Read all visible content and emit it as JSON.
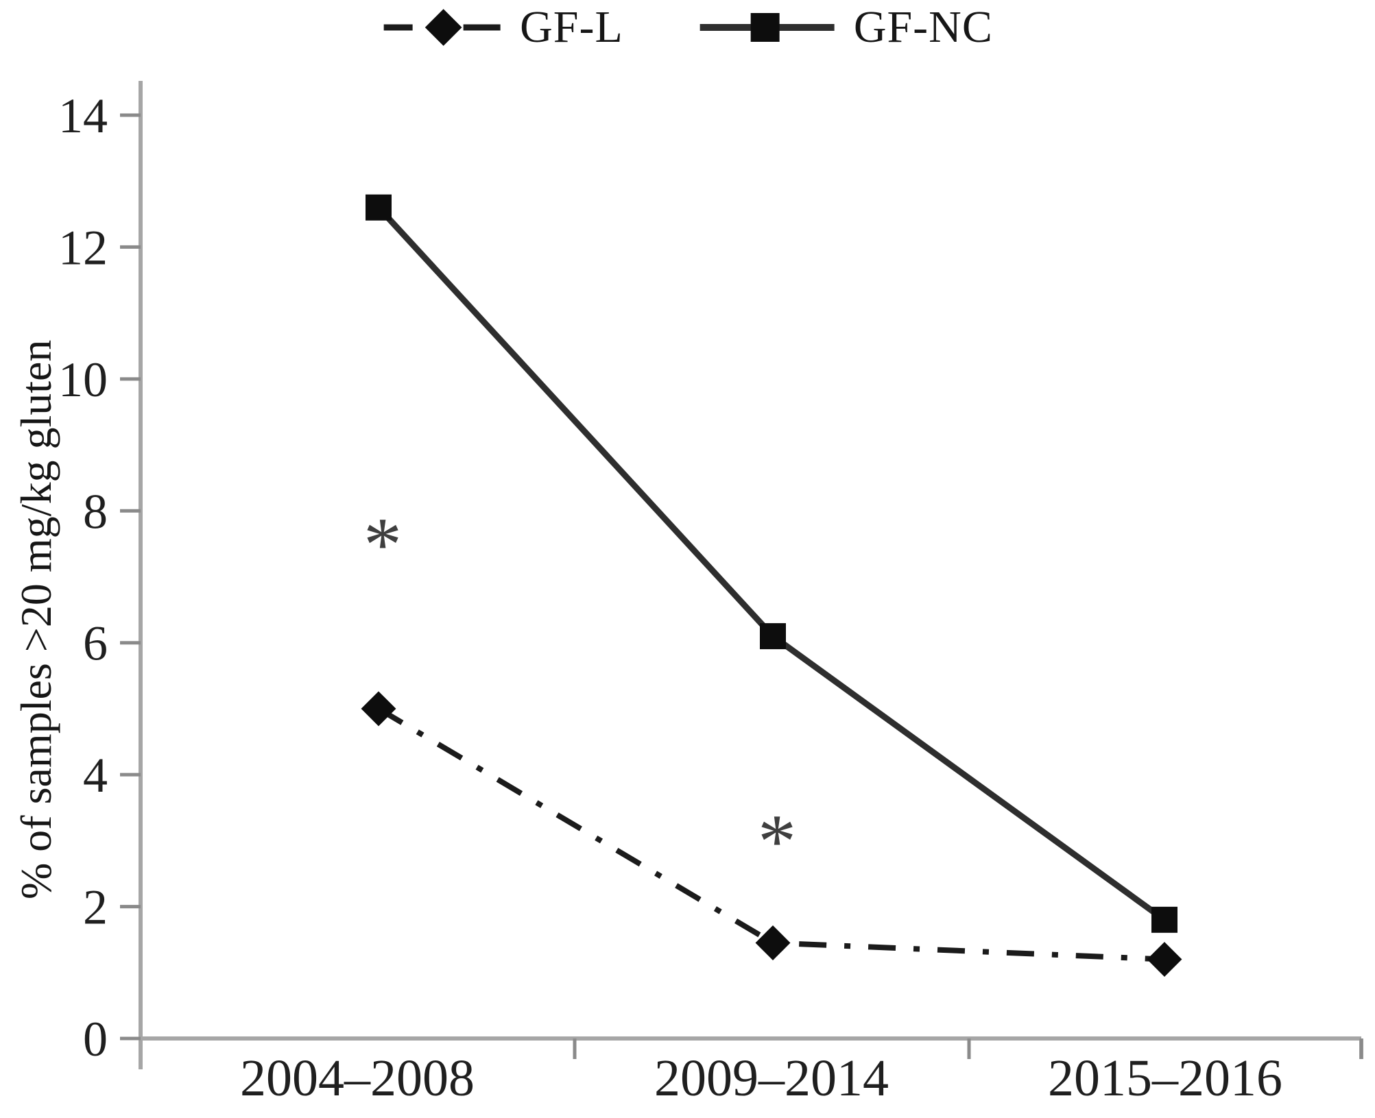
{
  "figure": {
    "background": "#ffffff",
    "text_color": "#1f1f1f",
    "axis_color": "#a6a6a6",
    "tick_color": "#8a8a8a",
    "annotation_color": "#3f3f3f"
  },
  "legend": {
    "items": [
      {
        "label": "GF-L",
        "marker": "diamond",
        "line_style": "dash-dot"
      },
      {
        "label": "GF-NC",
        "marker": "square",
        "line_style": "solid"
      }
    ]
  },
  "chart_data": {
    "type": "line",
    "title": "",
    "categories": [
      "2004–2008",
      "2009–2014",
      "2015–2016"
    ],
    "series": [
      {
        "name": "GF-L",
        "values": [
          5.0,
          1.45,
          1.2
        ],
        "marker": "diamond",
        "line_style": "dash-dot",
        "color": "#1b1b1b"
      },
      {
        "name": "GF-NC",
        "values": [
          12.6,
          6.1,
          1.8
        ],
        "marker": "square",
        "line_style": "solid",
        "color": "#2e2e2e"
      }
    ],
    "xlabel": "",
    "ylabel": "% of samples >20 mg/kg gluten",
    "ylim": [
      0,
      14
    ],
    "yticks": [
      0,
      2,
      4,
      6,
      8,
      10,
      12,
      14
    ],
    "grid": false,
    "legend_position": "top",
    "annotations": [
      {
        "text": "*",
        "category_index": 0,
        "value": 7.7
      },
      {
        "text": "*",
        "category_index": 1,
        "value": 3.2
      }
    ]
  }
}
